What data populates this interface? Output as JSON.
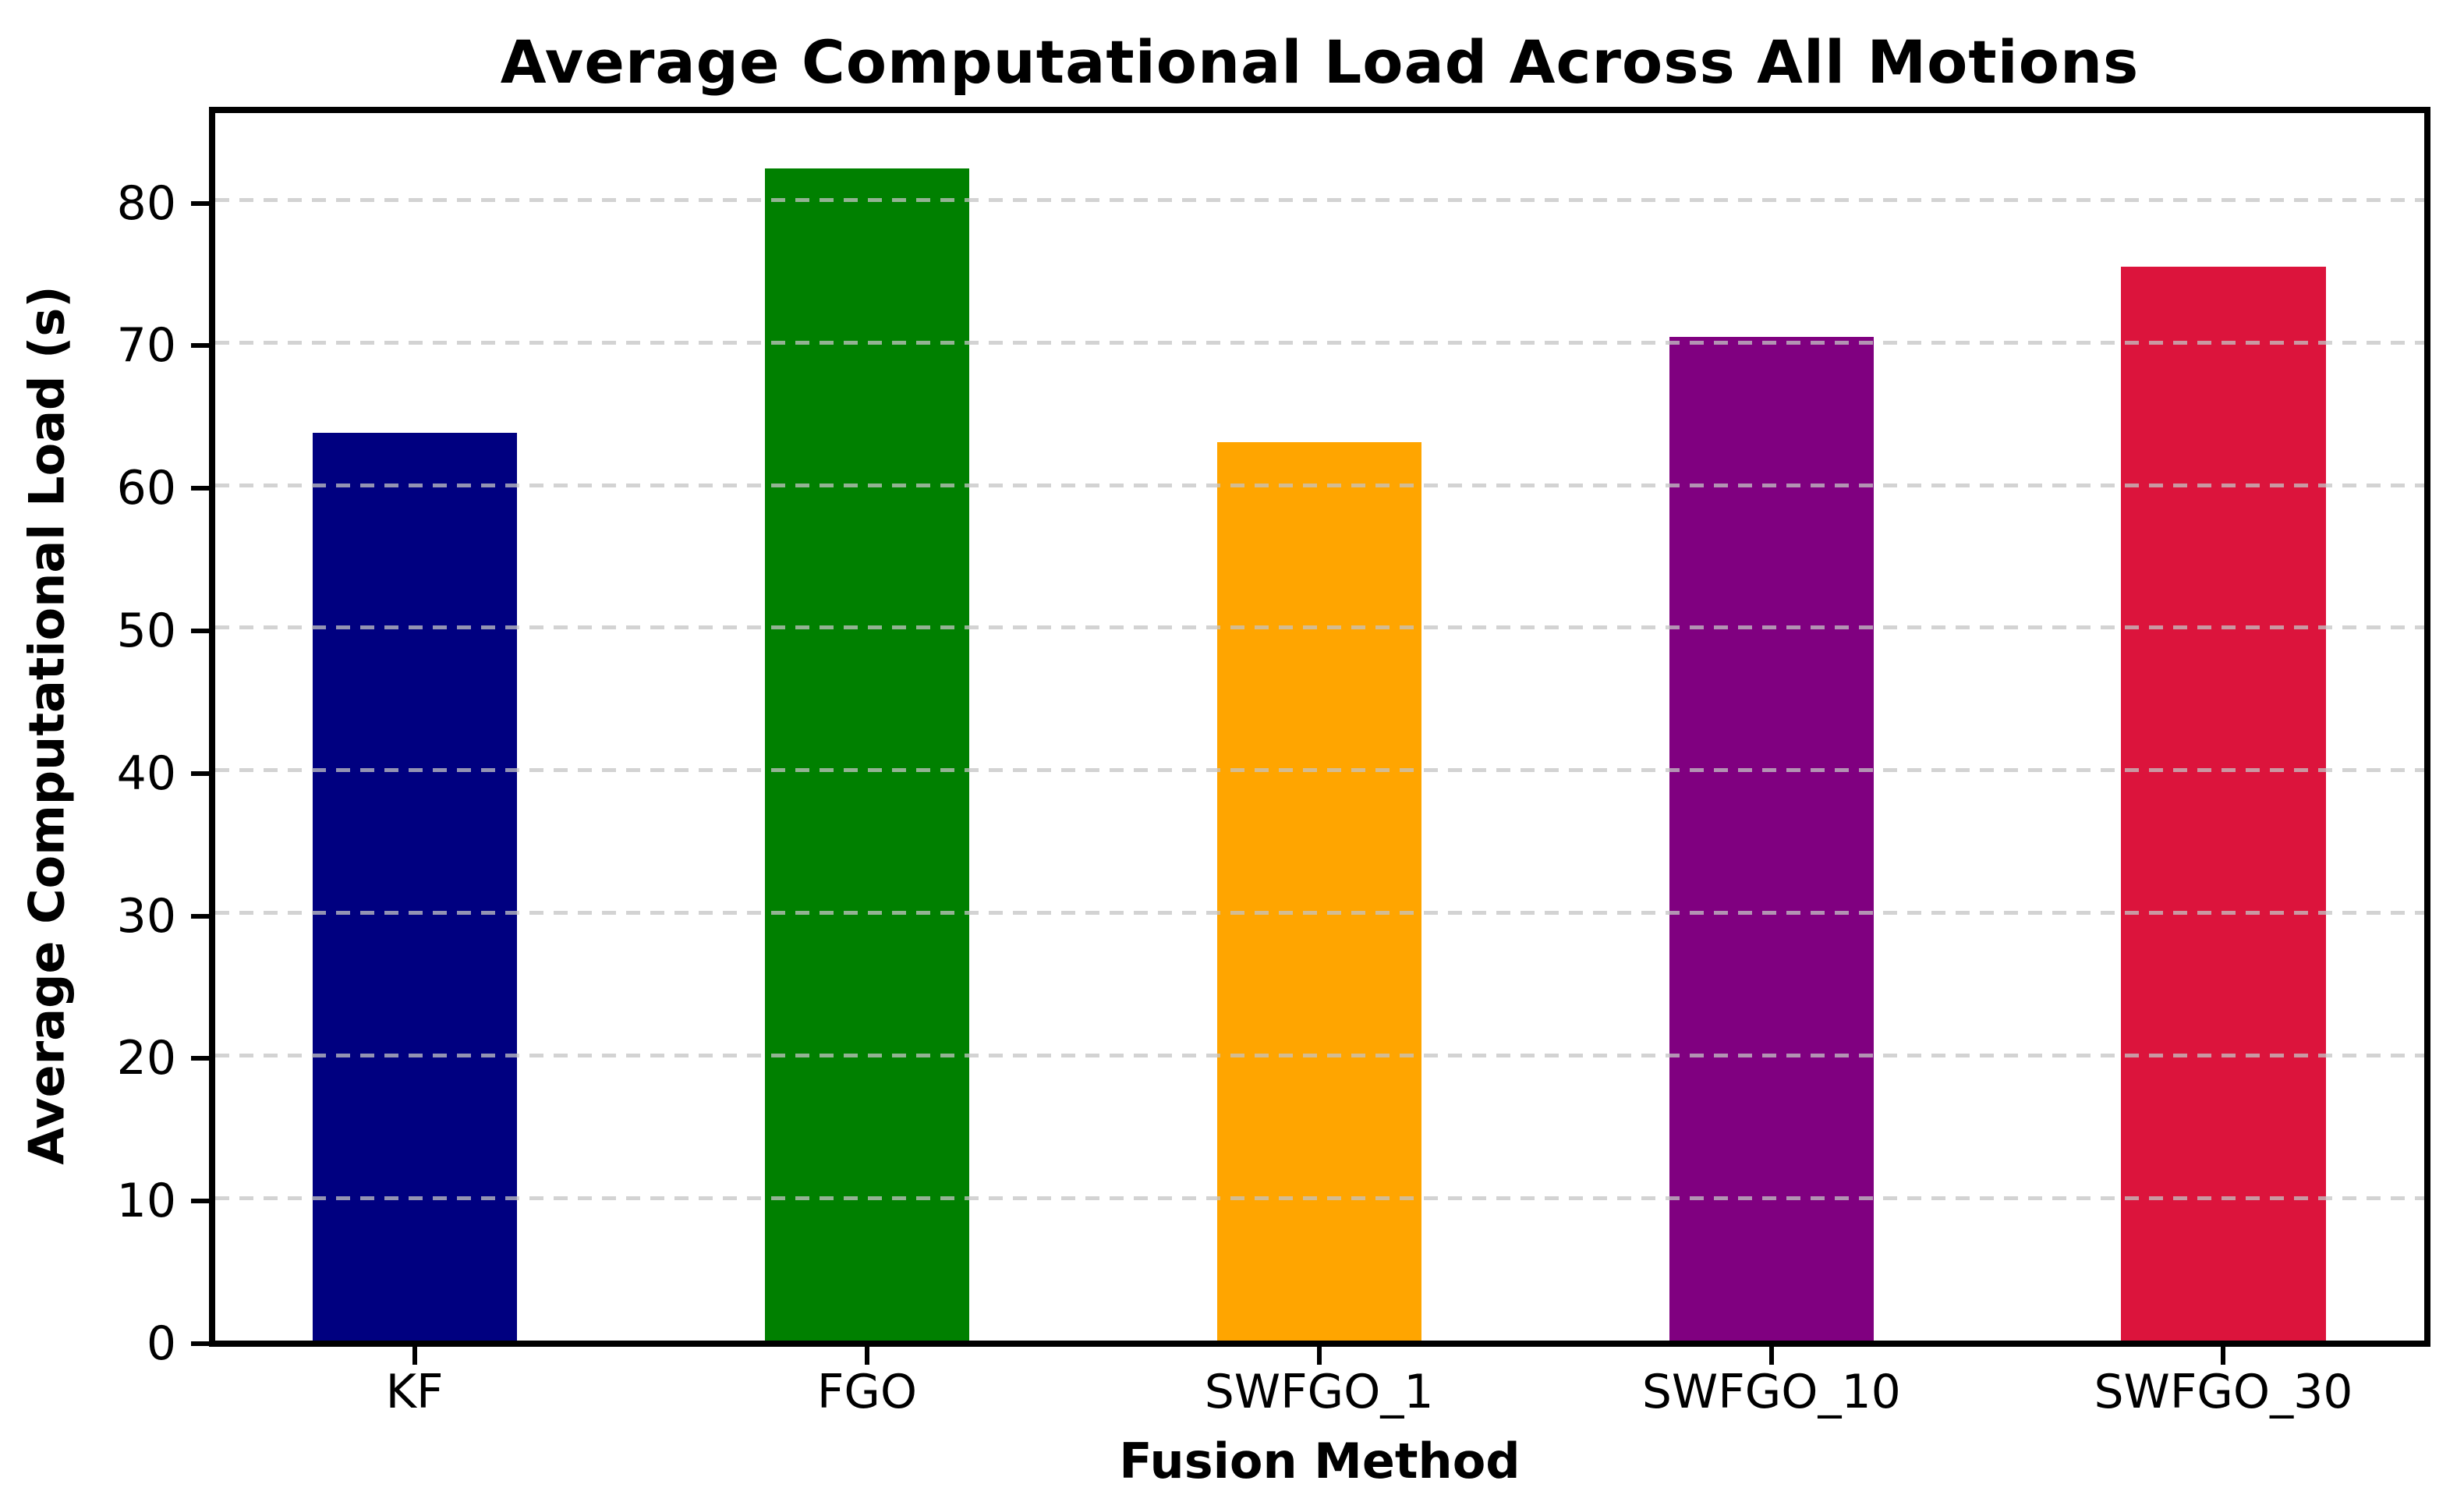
{
  "chart_data": {
    "type": "bar",
    "title": "Average Computational Load Across All Motions",
    "xlabel": "Fusion Method",
    "ylabel": "Average Computational Load (s)",
    "categories": [
      "KF",
      "FGO",
      "SWFGO_1",
      "SWFGO_10",
      "SWFGO_30"
    ],
    "values": [
      63.7,
      82.2,
      63.0,
      70.4,
      75.3
    ],
    "bar_colors": [
      "#000080",
      "#008000",
      "#FFA500",
      "#800080",
      "#DC143C"
    ],
    "yticks": [
      0,
      10,
      20,
      30,
      40,
      50,
      60,
      70,
      80
    ],
    "ylim": [
      0,
      86.1
    ],
    "grid": {
      "axis": "y",
      "style": "dashed",
      "color": "#CCCCCC",
      "on": true
    },
    "legend": "none",
    "bar_width_fraction": 0.0925,
    "background_color": "#FFFFFF",
    "text_color": "#000000"
  }
}
